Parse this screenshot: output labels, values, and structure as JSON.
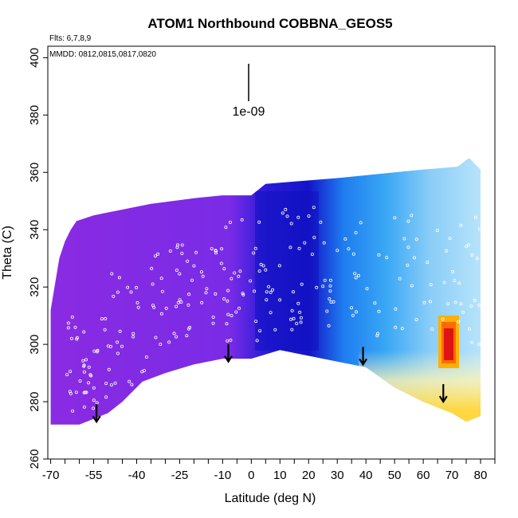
{
  "chart_data": {
    "type": "heatmap",
    "title": "ATOM1 Northbound COBBNA_GEOS5",
    "annotations": {
      "flights": "Flts: 6,7,8,9",
      "dates": "MMDD: 0812,0815,0817,0820",
      "scale": "1e-09"
    },
    "xlabel": "Latitude (deg N)",
    "ylabel": "Theta (C)",
    "xlim": [
      -71,
      85
    ],
    "ylim": [
      260,
      404
    ],
    "xticks": [
      -70,
      -55,
      -40,
      -25,
      -10,
      0,
      10,
      20,
      30,
      40,
      50,
      60,
      70,
      80
    ],
    "yticks": [
      260,
      280,
      300,
      320,
      340,
      360,
      380,
      400
    ],
    "xtick_labels": [
      "-70",
      "-55",
      "-40",
      "-25",
      "-10",
      "0",
      "10",
      "20",
      "30",
      "40",
      "50",
      "60",
      "70",
      "80"
    ],
    "ytick_labels": [
      "260",
      "280",
      "300",
      "320",
      "340",
      "360",
      "380",
      "400"
    ],
    "colors": {
      "low": "#8A2BE2",
      "mid_low": "#1010C8",
      "mid": "#1E90FF",
      "mid_high": "#87CEFA",
      "high_light": "#FFFACD",
      "high": "#FFD700",
      "peak": "#DC1414"
    },
    "flight_arrows": [
      {
        "lat": -54,
        "theta": 273
      },
      {
        "lat": -8,
        "theta": 294
      },
      {
        "lat": 39,
        "theta": 293
      },
      {
        "lat": 67,
        "theta": 280
      }
    ],
    "boundary_top": [
      [
        -70,
        312
      ],
      [
        -67,
        330
      ],
      [
        -65,
        336
      ],
      [
        -63,
        340
      ],
      [
        -61,
        343
      ],
      [
        -55,
        345
      ],
      [
        -45,
        347
      ],
      [
        -35,
        349
      ],
      [
        -20,
        351
      ],
      [
        -10,
        352
      ],
      [
        0,
        352
      ],
      [
        5,
        356
      ],
      [
        30,
        358
      ],
      [
        60,
        361
      ],
      [
        72,
        362
      ],
      [
        76,
        365
      ],
      [
        80,
        361
      ]
    ],
    "boundary_bottom": [
      [
        80,
        275
      ],
      [
        75,
        273
      ],
      [
        70,
        276
      ],
      [
        60,
        280
      ],
      [
        50,
        285
      ],
      [
        40,
        292
      ],
      [
        30,
        294
      ],
      [
        20,
        296
      ],
      [
        10,
        298
      ],
      [
        0,
        295
      ],
      [
        -10,
        295
      ],
      [
        -20,
        293
      ],
      [
        -30,
        290
      ],
      [
        -38,
        287
      ],
      [
        -45,
        280
      ],
      [
        -50,
        276
      ],
      [
        -55,
        274
      ],
      [
        -60,
        272
      ],
      [
        -70,
        272
      ]
    ]
  }
}
